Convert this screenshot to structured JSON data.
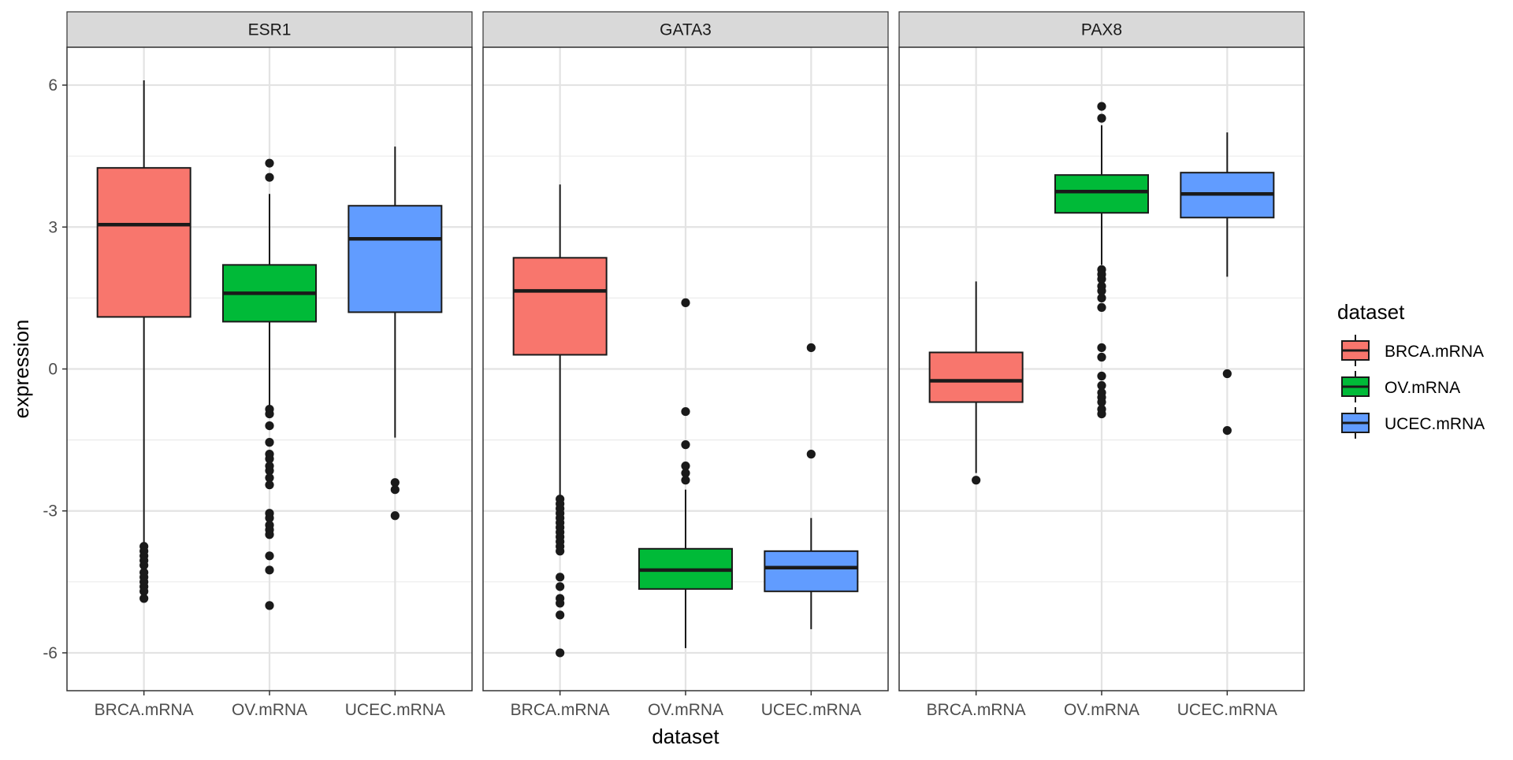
{
  "chart_data": {
    "type": "boxplot",
    "facet_by": "gene",
    "xlabel": "dataset",
    "ylabel": "expression",
    "ylim": [
      -6.8,
      6.8
    ],
    "y_ticks": [
      -6,
      -3,
      0,
      3,
      6
    ],
    "y_tick_labels": [
      "-6",
      "-3",
      "0",
      "3",
      "6"
    ],
    "categories": [
      "BRCA.mRNA",
      "OV.mRNA",
      "UCEC.mRNA"
    ],
    "grid": true,
    "legend": {
      "title": "dataset",
      "placement": "right",
      "entries": [
        {
          "label": "BRCA.mRNA",
          "color": "#F8766D"
        },
        {
          "label": "OV.mRNA",
          "color": "#00BA38"
        },
        {
          "label": "UCEC.mRNA",
          "color": "#619CFF"
        }
      ]
    },
    "panels": [
      {
        "facet": "ESR1",
        "boxes": [
          {
            "category": "BRCA.mRNA",
            "whisker_low": -3.7,
            "q1": 1.1,
            "median": 3.05,
            "q3": 4.25,
            "whisker_high": 6.1,
            "outliers": [
              -3.75,
              -3.85,
              -3.95,
              -4.05,
              -4.15,
              -4.3,
              -4.4,
              -4.5,
              -4.6,
              -4.7,
              -4.85
            ]
          },
          {
            "category": "OV.mRNA",
            "whisker_low": -0.8,
            "q1": 1.0,
            "median": 1.6,
            "q3": 2.2,
            "whisker_high": 3.7,
            "outliers": [
              4.35,
              4.05,
              -0.85,
              -0.95,
              -1.2,
              -1.55,
              -1.8,
              -1.9,
              -2.05,
              -2.15,
              -2.3,
              -2.45,
              -3.05,
              -3.15,
              -3.3,
              -3.4,
              -3.5,
              -3.95,
              -4.25,
              -5.0
            ]
          },
          {
            "category": "UCEC.mRNA",
            "whisker_low": -1.45,
            "q1": 1.2,
            "median": 2.75,
            "q3": 3.45,
            "whisker_high": 4.7,
            "outliers": [
              -2.4,
              -2.55,
              -3.1
            ]
          }
        ]
      },
      {
        "facet": "GATA3",
        "boxes": [
          {
            "category": "BRCA.mRNA",
            "whisker_low": -2.7,
            "q1": 0.3,
            "median": 1.65,
            "q3": 2.35,
            "whisker_high": 3.9,
            "outliers": [
              -2.75,
              -2.85,
              -2.95,
              -3.05,
              -3.15,
              -3.25,
              -3.35,
              -3.45,
              -3.55,
              -3.65,
              -3.75,
              -3.85,
              -4.4,
              -4.6,
              -4.85,
              -4.95,
              -5.2,
              -6.0
            ]
          },
          {
            "category": "OV.mRNA",
            "whisker_low": -5.9,
            "q1": -4.65,
            "median": -4.25,
            "q3": -3.8,
            "whisker_high": -2.55,
            "outliers": [
              1.4,
              -0.9,
              -1.6,
              -2.05,
              -2.2,
              -2.35
            ]
          },
          {
            "category": "UCEC.mRNA",
            "whisker_low": -5.5,
            "q1": -4.7,
            "median": -4.2,
            "q3": -3.85,
            "whisker_high": -3.15,
            "outliers": [
              0.45,
              -1.8
            ]
          }
        ]
      },
      {
        "facet": "PAX8",
        "boxes": [
          {
            "category": "BRCA.mRNA",
            "whisker_low": -2.2,
            "q1": -0.7,
            "median": -0.25,
            "q3": 0.35,
            "whisker_high": 1.85,
            "outliers": [
              -2.35
            ]
          },
          {
            "category": "OV.mRNA",
            "whisker_low": 2.2,
            "q1": 3.3,
            "median": 3.75,
            "q3": 4.1,
            "whisker_high": 5.15,
            "outliers": [
              5.55,
              5.3,
              2.1,
              2.0,
              1.9,
              1.75,
              1.65,
              1.5,
              1.3,
              0.45,
              0.25,
              -0.15,
              -0.35,
              -0.5,
              -0.6,
              -0.7,
              -0.85,
              -0.95
            ]
          },
          {
            "category": "UCEC.mRNA",
            "whisker_low": 1.95,
            "q1": 3.2,
            "median": 3.7,
            "q3": 4.15,
            "whisker_high": 5.0,
            "outliers": [
              -0.1,
              -1.3
            ]
          }
        ]
      }
    ]
  }
}
